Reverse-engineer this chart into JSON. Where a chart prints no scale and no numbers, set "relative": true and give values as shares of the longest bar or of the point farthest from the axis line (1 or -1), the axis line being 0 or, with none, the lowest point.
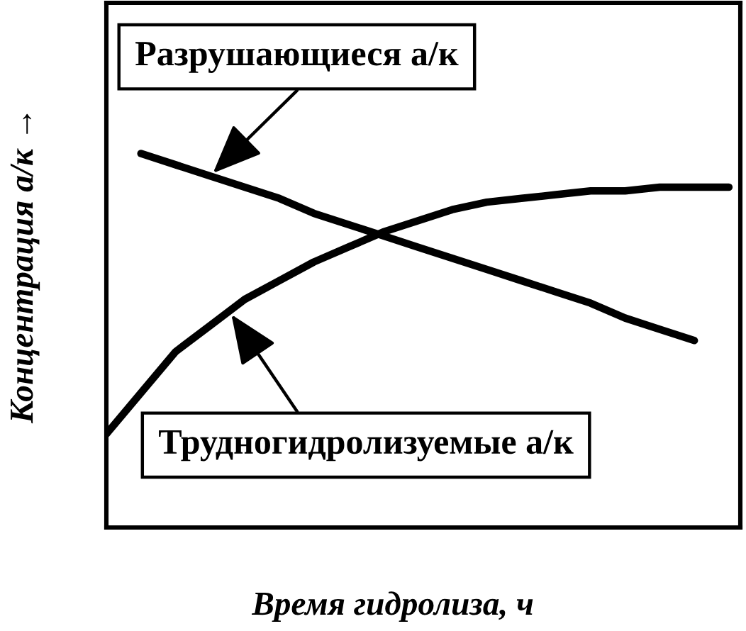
{
  "chart_data": {
    "type": "line",
    "xlabel": "Время гидролиза, ч",
    "ylabel": "Концентрация а/к →",
    "categories": [
      null,
      null,
      null,
      null,
      null,
      null,
      null,
      null,
      null,
      null,
      null,
      null,
      null,
      null,
      null,
      null,
      null,
      null,
      null
    ],
    "relative": true,
    "series": [
      {
        "name": "Разрушающиеся а/к",
        "color": "#000000",
        "values": [
          null,
          1.0,
          0.97,
          0.94,
          0.91,
          0.88,
          0.84,
          0.81,
          0.78,
          0.75,
          0.72,
          0.69,
          0.66,
          0.63,
          0.6,
          0.56,
          0.53,
          0.5,
          null
        ]
      },
      {
        "name": "Трудногидролизуемые а/к",
        "color": "#000000",
        "values": [
          0.25,
          0.36,
          0.47,
          0.54,
          0.61,
          0.66,
          0.71,
          0.75,
          0.79,
          0.82,
          0.85,
          0.87,
          0.88,
          0.89,
          0.9,
          0.9,
          0.91,
          0.91,
          0.91
        ]
      }
    ]
  }
}
